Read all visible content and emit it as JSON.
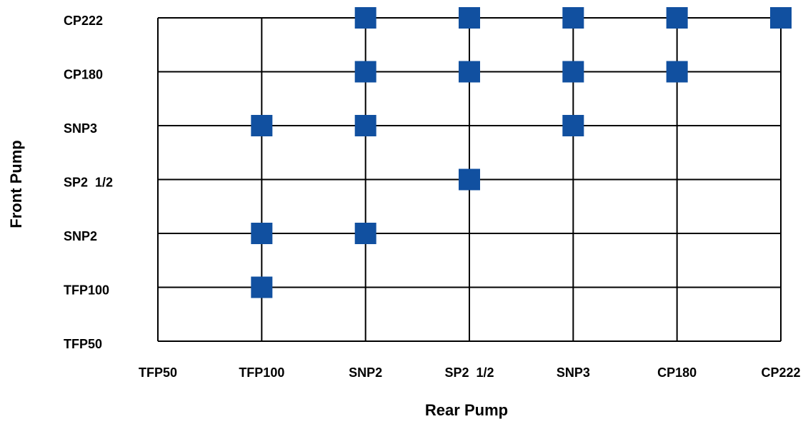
{
  "chart_data": {
    "type": "scatter",
    "title": "",
    "xlabel": "Rear Pump",
    "ylabel": "Front Pump",
    "x_categories": [
      "TFP50",
      "TFP100",
      "SNP2",
      "SP2  1/2",
      "SNP3",
      "CP180",
      "CP222"
    ],
    "y_categories": [
      "TFP50",
      "TFP100",
      "SNP2",
      "SP2  1/2",
      "SNP3",
      "CP180",
      "CP222"
    ],
    "points": [
      {
        "x": "TFP100",
        "y": "TFP100"
      },
      {
        "x": "TFP100",
        "y": "SNP2"
      },
      {
        "x": "TFP100",
        "y": "SNP3"
      },
      {
        "x": "SNP2",
        "y": "SNP2"
      },
      {
        "x": "SNP2",
        "y": "SNP3"
      },
      {
        "x": "SNP2",
        "y": "CP180"
      },
      {
        "x": "SNP2",
        "y": "CP222"
      },
      {
        "x": "SP2  1/2",
        "y": "SP2  1/2"
      },
      {
        "x": "SP2  1/2",
        "y": "CP180"
      },
      {
        "x": "SP2  1/2",
        "y": "CP222"
      },
      {
        "x": "SNP3",
        "y": "SNP3"
      },
      {
        "x": "SNP3",
        "y": "CP180"
      },
      {
        "x": "SNP3",
        "y": "CP222"
      },
      {
        "x": "CP180",
        "y": "CP180"
      },
      {
        "x": "CP180",
        "y": "CP222"
      },
      {
        "x": "CP222",
        "y": "CP222"
      }
    ],
    "grid": true,
    "marker": "square",
    "marker_color": "#1150A0",
    "grid_color": "#000000"
  }
}
